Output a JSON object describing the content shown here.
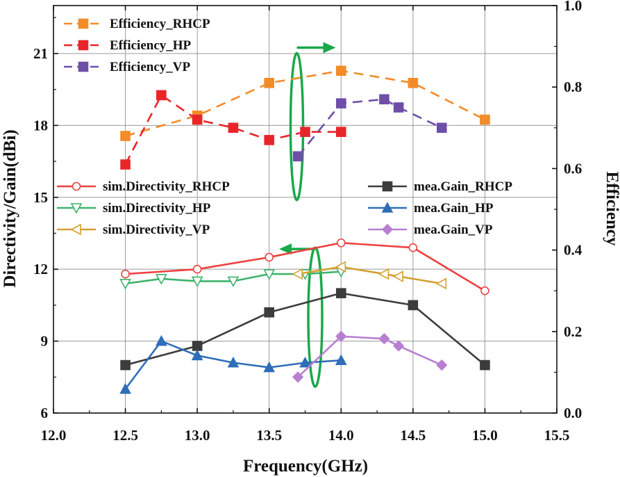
{
  "chart_data": {
    "type": "line",
    "xlabel": "Frequency(GHz)",
    "ylabel_left": "Directivity/Gain(dBi)",
    "ylabel_right": "Efficiency",
    "xlim": [
      12.0,
      15.5
    ],
    "ylim_left": [
      6,
      23
    ],
    "ylim_right": [
      0.0,
      1.0
    ],
    "x_ticks": [
      "12.0",
      "12.5",
      "13.0",
      "13.5",
      "14.0",
      "14.5",
      "15.0",
      "15.5"
    ],
    "y_left_ticks": [
      "6",
      "9",
      "12",
      "15",
      "18",
      "21"
    ],
    "y_right_ticks": [
      "0.0",
      "0.2",
      "0.4",
      "0.6",
      "0.8",
      "1.0"
    ],
    "grid": true,
    "series": [
      {
        "name": "Efficiency_RHCP",
        "axis": "right",
        "color": "#F28C28",
        "marker": "square",
        "filled": true,
        "dash": "dash",
        "x": [
          12.5,
          13.0,
          13.5,
          14.0,
          14.5,
          15.0
        ],
        "y": [
          0.68,
          0.73,
          0.81,
          0.84,
          0.81,
          0.72
        ]
      },
      {
        "name": "Efficiency_HP",
        "axis": "right",
        "color": "#E8262A",
        "marker": "square",
        "filled": true,
        "dash": "dash",
        "x": [
          12.5,
          12.75,
          13.0,
          13.25,
          13.5,
          13.75,
          14.0
        ],
        "y": [
          0.61,
          0.78,
          0.72,
          0.7,
          0.67,
          0.69,
          0.69
        ]
      },
      {
        "name": "Efficiency_VP",
        "axis": "right",
        "color": "#6E4FA8",
        "marker": "square",
        "filled": true,
        "dash": "dash",
        "x": [
          13.7,
          14.0,
          14.3,
          14.4,
          14.7
        ],
        "y": [
          0.63,
          0.76,
          0.77,
          0.75,
          0.7
        ]
      },
      {
        "name": "sim.Directivity_RHCP",
        "axis": "left",
        "color": "#EE4040",
        "marker": "circle",
        "filled": false,
        "dash": "solid",
        "x": [
          12.5,
          13.0,
          13.5,
          14.0,
          14.5,
          15.0
        ],
        "y": [
          11.8,
          12.0,
          12.5,
          13.1,
          12.9,
          11.1
        ]
      },
      {
        "name": "sim.Directivity_HP",
        "axis": "left",
        "color": "#3DB36B",
        "marker": "triangle-down",
        "filled": false,
        "dash": "solid",
        "x": [
          12.5,
          12.75,
          13.0,
          13.25,
          13.5,
          13.75,
          14.0
        ],
        "y": [
          11.4,
          11.6,
          11.5,
          11.5,
          11.8,
          11.8,
          11.9
        ]
      },
      {
        "name": "sim.Directivity_VP",
        "axis": "left",
        "color": "#D4A030",
        "marker": "triangle-left",
        "filled": false,
        "dash": "solid",
        "x": [
          13.7,
          14.0,
          14.3,
          14.4,
          14.7
        ],
        "y": [
          11.8,
          12.1,
          11.8,
          11.7,
          11.4
        ]
      },
      {
        "name": "mea.Gain_RHCP",
        "axis": "left",
        "color": "#3C3C3C",
        "marker": "square",
        "filled": true,
        "dash": "solid",
        "x": [
          12.5,
          13.0,
          13.5,
          14.0,
          14.5,
          15.0
        ],
        "y": [
          8.0,
          8.8,
          10.2,
          11.0,
          10.5,
          8.0
        ]
      },
      {
        "name": "mea.Gain_HP",
        "axis": "left",
        "color": "#2E6DB8",
        "marker": "triangle-up",
        "filled": true,
        "dash": "solid",
        "x": [
          12.5,
          12.75,
          13.0,
          13.25,
          13.5,
          13.75,
          14.0
        ],
        "y": [
          7.0,
          9.0,
          8.4,
          8.1,
          7.9,
          8.1,
          8.2
        ]
      },
      {
        "name": "mea.Gain_VP",
        "axis": "left",
        "color": "#B87FD0",
        "marker": "diamond",
        "filled": true,
        "dash": "solid",
        "x": [
          13.7,
          14.0,
          14.3,
          14.4,
          14.7
        ],
        "y": [
          7.5,
          9.2,
          9.1,
          8.8,
          8.0
        ]
      }
    ],
    "legend_top_left": [
      {
        "label": "Efficiency_RHCP"
      },
      {
        "label": "Efficiency_HP"
      },
      {
        "label": "Efficiency_VP"
      }
    ],
    "legend_mid_left": [
      {
        "label": "sim.Directivity_RHCP"
      },
      {
        "label": "sim.Directivity_HP"
      },
      {
        "label": "sim.Directivity_VP"
      }
    ],
    "legend_mid_right": [
      {
        "label": "mea.Gain_RHCP"
      },
      {
        "label": "mea.Gain_HP"
      },
      {
        "label": "mea.Gain_VP"
      }
    ],
    "annotations": [
      {
        "type": "ellipse-arrow",
        "points_to": "right-axis",
        "color": "#1AA84A",
        "at_x": 13.75,
        "y_range": [
          0.55,
          0.89
        ]
      },
      {
        "type": "ellipse-arrow",
        "points_to": "left-axis",
        "color": "#1AA84A",
        "at_x": 13.82,
        "y_range": [
          7.1,
          12.9
        ]
      }
    ]
  }
}
